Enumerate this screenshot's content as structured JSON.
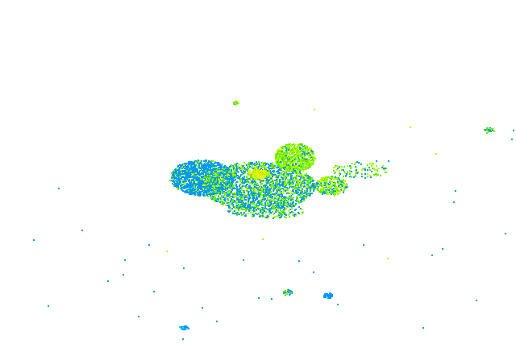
{
  "palette": {
    "light": "#0099ff",
    "light_moderate": "#33cc33",
    "moderate": "#66ee00",
    "moderate_strong": "#aaff00",
    "strong": "#eeee00",
    "intense": "#ff3300",
    "cyan": "#00e5ff"
  }
}
